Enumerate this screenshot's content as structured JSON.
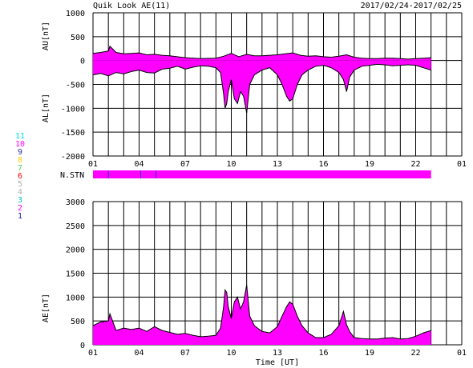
{
  "header": {
    "title": "Quik Look AE(11)",
    "date_range": "2017/02/24-2017/02/25"
  },
  "colors": {
    "fill": "#ff00ff",
    "line": "#000000",
    "grid": "#000000",
    "station_bar": "#ff00ff"
  },
  "station_key": [
    {
      "label": "11",
      "color": "#00e0e0"
    },
    {
      "label": "10",
      "color": "#ff00ff"
    },
    {
      "label": "9",
      "color": "#3030a0"
    },
    {
      "label": "8",
      "color": "#ffd000"
    },
    {
      "label": "7",
      "color": "#50d050"
    },
    {
      "label": "6",
      "color": "#ff0000"
    },
    {
      "label": "5",
      "color": "#b0b0b0"
    },
    {
      "label": "4",
      "color": "#b0b0b0"
    },
    {
      "label": "3",
      "color": "#00c0c0"
    },
    {
      "label": "2",
      "color": "#ff00ff"
    },
    {
      "label": "1",
      "color": "#2020c0"
    }
  ],
  "nstn": {
    "label": "N.STN",
    "range": [
      1.0,
      23.0
    ],
    "dividers": [
      2.0,
      4.1,
      5.1
    ]
  },
  "chart_data": [
    {
      "type": "area",
      "title": "Quik Look AE(11)",
      "ylabel_top": "AU[nT]",
      "ylabel_bottom": "AL[nT]",
      "ylim": [
        -2000,
        1000
      ],
      "yticks": [
        "1000",
        "500",
        "0",
        "-500",
        "-1000",
        "-1500",
        "-2000"
      ],
      "xlim": [
        1,
        25
      ],
      "xticks": [
        "01",
        "04",
        "07",
        "10",
        "13",
        "16",
        "19",
        "22",
        "01"
      ],
      "grid": true,
      "series": [
        {
          "role": "AU",
          "x": [
            1.0,
            1.5,
            2.0,
            2.1,
            2.5,
            3.0,
            3.5,
            4.0,
            4.5,
            5.0,
            5.5,
            6.0,
            7.0,
            8.0,
            9.0,
            9.5,
            10.0,
            10.5,
            11.0,
            11.5,
            12.0,
            12.5,
            13.0,
            13.5,
            14.0,
            14.5,
            15.0,
            15.5,
            16.0,
            16.5,
            17.0,
            17.5,
            18.0,
            18.5,
            19.0,
            19.5,
            20.0,
            20.5,
            21.0,
            21.5,
            22.0,
            22.5,
            23.0
          ],
          "values": [
            150,
            170,
            200,
            300,
            170,
            140,
            150,
            160,
            120,
            130,
            110,
            100,
            60,
            40,
            50,
            90,
            150,
            80,
            130,
            100,
            100,
            110,
            120,
            140,
            160,
            110,
            90,
            100,
            80,
            70,
            90,
            120,
            70,
            50,
            40,
            40,
            50,
            50,
            40,
            30,
            40,
            50,
            60
          ]
        },
        {
          "role": "AL",
          "x": [
            1.0,
            1.5,
            2.0,
            2.5,
            3.0,
            3.5,
            4.0,
            4.5,
            5.0,
            5.5,
            6.0,
            6.5,
            7.0,
            7.5,
            8.0,
            8.5,
            9.0,
            9.3,
            9.5,
            9.6,
            9.7,
            9.8,
            10.0,
            10.2,
            10.4,
            10.6,
            10.8,
            11.0,
            11.2,
            11.5,
            12.0,
            12.5,
            13.0,
            13.3,
            13.6,
            13.8,
            14.0,
            14.3,
            14.6,
            15.0,
            15.5,
            16.0,
            16.5,
            17.0,
            17.3,
            17.5,
            17.7,
            18.0,
            18.5,
            19.0,
            19.5,
            20.0,
            20.5,
            21.0,
            21.5,
            22.0,
            22.5,
            23.0
          ],
          "values": [
            -300,
            -270,
            -320,
            -250,
            -280,
            -230,
            -200,
            -250,
            -260,
            -180,
            -160,
            -120,
            -180,
            -140,
            -110,
            -120,
            -150,
            -250,
            -700,
            -1000,
            -900,
            -650,
            -400,
            -800,
            -900,
            -650,
            -750,
            -1100,
            -500,
            -300,
            -200,
            -150,
            -300,
            -500,
            -750,
            -850,
            -800,
            -500,
            -300,
            -200,
            -120,
            -100,
            -150,
            -250,
            -400,
            -650,
            -350,
            -200,
            -120,
            -100,
            -80,
            -90,
            -110,
            -100,
            -90,
            -100,
            -150,
            -200
          ]
        }
      ]
    },
    {
      "type": "area",
      "ylabel": "AE[nT]",
      "xlabel": "Time [UT]",
      "ylim": [
        0,
        3000
      ],
      "yticks": [
        "3000",
        "2500",
        "2000",
        "1500",
        "1000",
        "500",
        "0"
      ],
      "xlim": [
        1,
        25
      ],
      "xticks": [
        "01",
        "04",
        "07",
        "10",
        "13",
        "16",
        "19",
        "22",
        "01"
      ],
      "grid": true,
      "series": [
        {
          "role": "AE",
          "x": [
            1.0,
            1.5,
            2.0,
            2.1,
            2.5,
            3.0,
            3.5,
            4.0,
            4.5,
            5.0,
            5.5,
            6.0,
            6.5,
            7.0,
            7.5,
            8.0,
            8.5,
            9.0,
            9.3,
            9.5,
            9.6,
            9.7,
            9.8,
            10.0,
            10.2,
            10.4,
            10.6,
            10.8,
            11.0,
            11.2,
            11.5,
            12.0,
            12.5,
            13.0,
            13.3,
            13.6,
            13.8,
            14.0,
            14.3,
            14.6,
            15.0,
            15.5,
            16.0,
            16.5,
            17.0,
            17.3,
            17.5,
            17.7,
            18.0,
            18.5,
            19.0,
            19.5,
            20.0,
            20.5,
            21.0,
            21.5,
            22.0,
            22.5,
            23.0
          ],
          "values": [
            400,
            480,
            500,
            650,
            300,
            350,
            320,
            350,
            280,
            380,
            300,
            260,
            220,
            240,
            200,
            170,
            180,
            200,
            350,
            800,
            1150,
            1100,
            800,
            550,
            900,
            1000,
            750,
            900,
            1250,
            600,
            400,
            280,
            250,
            380,
            600,
            800,
            900,
            850,
            600,
            400,
            250,
            150,
            150,
            220,
            400,
            700,
            420,
            280,
            150,
            130,
            120,
            120,
            140,
            150,
            120,
            130,
            180,
            250,
            300
          ]
        }
      ]
    }
  ]
}
